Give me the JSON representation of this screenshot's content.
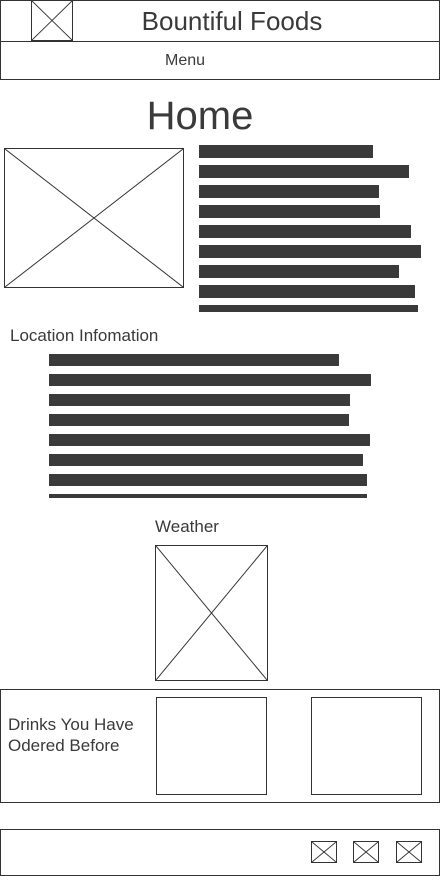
{
  "header": {
    "title": "Bountiful Foods",
    "logo_icon": "image-placeholder-icon"
  },
  "nav": {
    "menu_label": "Menu"
  },
  "main": {
    "page_title": "Home",
    "hero_image_icon": "image-placeholder-icon"
  },
  "location": {
    "title": "Location Infomation"
  },
  "weather": {
    "title": "Weather",
    "image_icon": "image-placeholder-icon"
  },
  "drinks": {
    "title": "Drinks You Have Odered Before"
  },
  "footer": {
    "icons": [
      "social-placeholder-icon",
      "social-placeholder-icon",
      "social-placeholder-icon"
    ]
  },
  "colors": {
    "border": "#333333",
    "bars": "#3a3a3a",
    "background": "#ffffff"
  }
}
